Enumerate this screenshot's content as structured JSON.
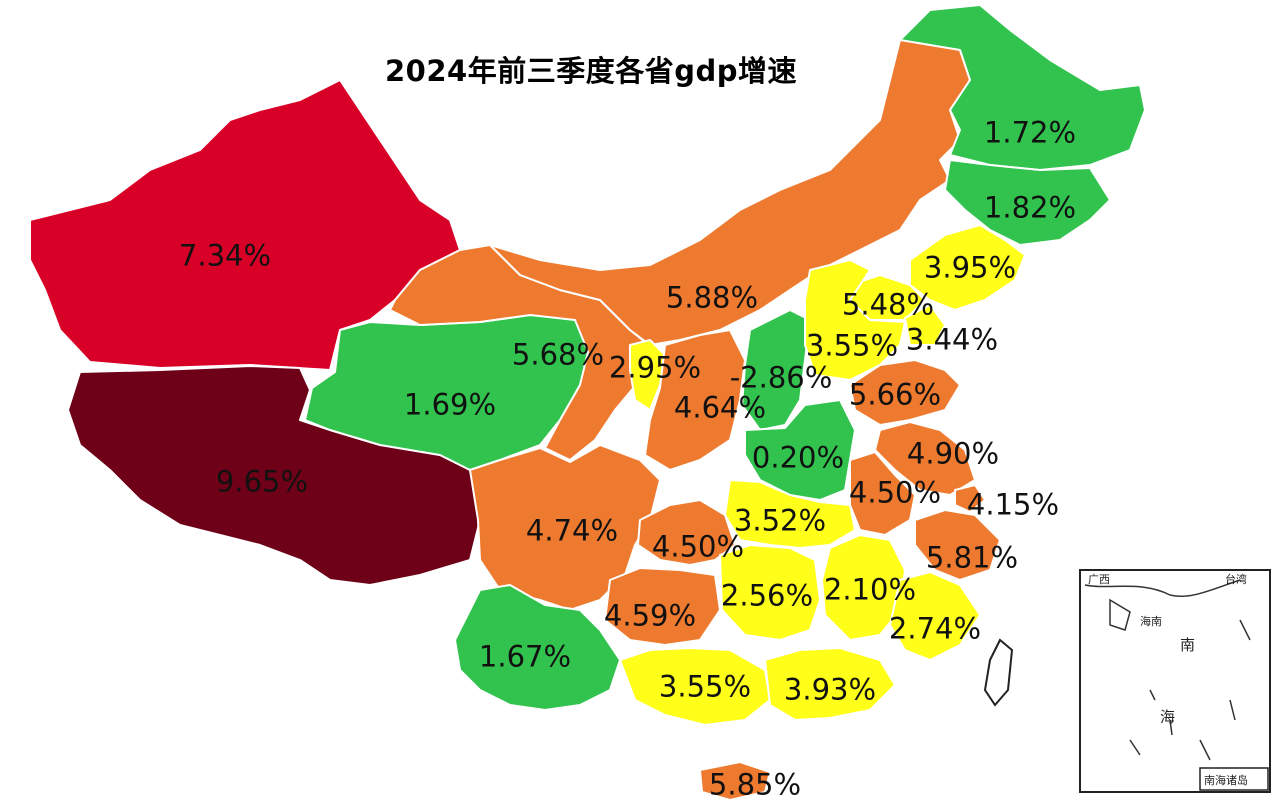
{
  "title": "2024年前三季度各省gdp增速",
  "legend_colors": {
    "dark_red": "#6e0018",
    "red": "#d80027",
    "orange": "#ee7a2f",
    "yellow": "#ffff1a",
    "green": "#31c34e"
  },
  "regions": [
    {
      "name_label": "7.34%",
      "value": 7.34,
      "color": "#d80027"
    },
    {
      "name_label": "9.65%",
      "value": 9.65,
      "color": "#6e0018"
    },
    {
      "name_label": "1.69%",
      "value": 1.69,
      "color": "#31c34e"
    },
    {
      "name_label": "5.68%",
      "value": 5.68,
      "color": "#ee7a2f"
    },
    {
      "name_label": "5.88%",
      "value": 5.88,
      "color": "#ee7a2f"
    },
    {
      "name_label": "2.95%",
      "value": 2.95,
      "color": "#ffff1a"
    },
    {
      "name_label": "4.64%",
      "value": 4.64,
      "color": "#ee7a2f"
    },
    {
      "name_label": "-2.86%",
      "value": -2.86,
      "color": "#31c34e"
    },
    {
      "name_label": "1.72%",
      "value": 1.72,
      "color": "#31c34e"
    },
    {
      "name_label": "1.82%",
      "value": 1.82,
      "color": "#31c34e"
    },
    {
      "name_label": "3.95%",
      "value": 3.95,
      "color": "#ffff1a"
    },
    {
      "name_label": "5.48%",
      "value": 5.48,
      "color": "#ffff1a"
    },
    {
      "name_label": "3.55%",
      "value": 3.55,
      "color": "#ffff1a"
    },
    {
      "name_label": "3.44%",
      "value": 3.44,
      "color": "#ffff1a"
    },
    {
      "name_label": "5.66%",
      "value": 5.66,
      "color": "#ee7a2f"
    },
    {
      "name_label": "0.20%",
      "value": 0.2,
      "color": "#31c34e"
    },
    {
      "name_label": "4.90%",
      "value": 4.9,
      "color": "#ee7a2f"
    },
    {
      "name_label": "4.50%",
      "value": 4.5,
      "color": "#ee7a2f"
    },
    {
      "name_label": "4.15%",
      "value": 4.15,
      "color": "#ee7a2f"
    },
    {
      "name_label": "4.74%",
      "value": 4.74,
      "color": "#ee7a2f"
    },
    {
      "name_label": "3.52%",
      "value": 3.52,
      "color": "#ffff1a"
    },
    {
      "name_label": "4.50%",
      "value": 4.5,
      "color": "#ee7a2f"
    },
    {
      "name_label": "5.81%",
      "value": 5.81,
      "color": "#ee7a2f"
    },
    {
      "name_label": "2.56%",
      "value": 2.56,
      "color": "#ffff1a"
    },
    {
      "name_label": "2.10%",
      "value": 2.1,
      "color": "#ffff1a"
    },
    {
      "name_label": "4.59%",
      "value": 4.59,
      "color": "#ee7a2f"
    },
    {
      "name_label": "2.74%",
      "value": 2.74,
      "color": "#ffff1a"
    },
    {
      "name_label": "1.67%",
      "value": 1.67,
      "color": "#31c34e"
    },
    {
      "name_label": "3.55%",
      "value": 3.55,
      "color": "#ffff1a"
    },
    {
      "name_label": "3.93%",
      "value": 3.93,
      "color": "#ffff1a"
    },
    {
      "name_label": "5.85%",
      "value": 5.85,
      "color": "#ee7a2f"
    }
  ],
  "inset": {
    "title": "南海诸岛",
    "labels": [
      "广西",
      "台湾",
      "海南",
      "南",
      "海"
    ]
  }
}
